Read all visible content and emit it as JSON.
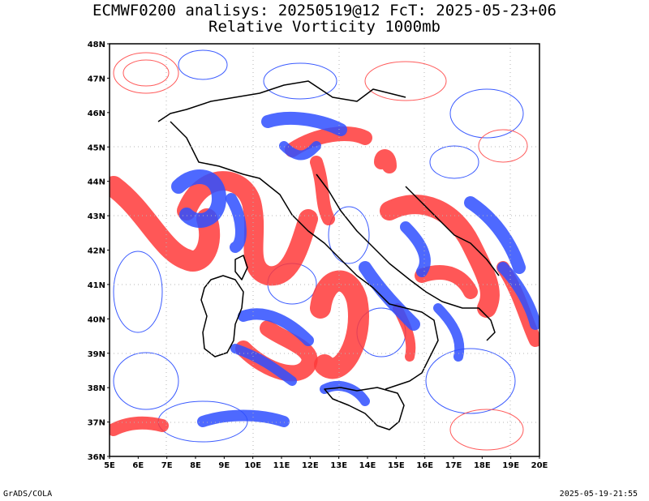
{
  "title_line1": "ECMWF0200 analisys: 20250519@12 FcT: 2025-05-23+06",
  "title_line2": "Relative Vorticity 1000mb",
  "lat_labels": [
    "48N",
    "47N",
    "46N",
    "45N",
    "44N",
    "43N",
    "42N",
    "41N",
    "40N",
    "39N",
    "38N",
    "37N",
    "36N"
  ],
  "lon_labels": [
    "5E",
    "6E",
    "7E",
    "8E",
    "9E",
    "10E",
    "11E",
    "12E",
    "13E",
    "14E",
    "15E",
    "16E",
    "17E",
    "18E",
    "19E",
    "20E"
  ],
  "lat_range": [
    36,
    48
  ],
  "lon_range": [
    5,
    20
  ],
  "footer_left": "GrADS/COLA",
  "footer_right": "2025-05-19-21:55",
  "colors": {
    "positive": "#ff3a3a",
    "negative": "#2f4fff",
    "coast": "#000000",
    "grid": "#b4b4b4"
  }
}
